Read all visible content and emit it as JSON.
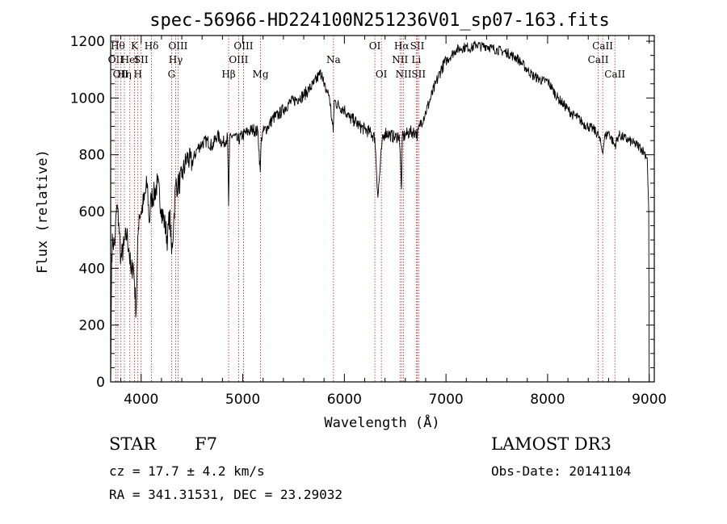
{
  "chart_data": {
    "type": "line",
    "title": "spec-56966-HD224100N251236V01_sp07-163.fits",
    "xlabel": "Wavelength (Å)",
    "ylabel": "Flux (relative)",
    "xlim": [
      3700,
      9050
    ],
    "ylim": [
      0,
      1220
    ],
    "xticks": [
      4000,
      5000,
      6000,
      7000,
      8000,
      9000
    ],
    "yticks": [
      0,
      200,
      400,
      600,
      800,
      1000,
      1200
    ],
    "grid": false,
    "series": [
      {
        "x": [
          3700,
          3705,
          3710,
          3720,
          3740,
          3760,
          3780,
          3800,
          3830,
          3860,
          3880,
          3900,
          3920,
          3935,
          3950,
          3960,
          3970,
          3980,
          4000,
          4030,
          4060,
          4080,
          4100,
          4130,
          4160,
          4200,
          4230,
          4260,
          4280,
          4300,
          4320,
          4340,
          4360,
          4400,
          4450,
          4500,
          4550,
          4600,
          4650,
          4700,
          4750,
          4800,
          4850,
          4861,
          4870,
          4900,
          4950,
          5000,
          5050,
          5100,
          5150,
          5172,
          5183,
          5200,
          5250,
          5300,
          5350,
          5400,
          5450,
          5500,
          5550,
          5600,
          5650,
          5700,
          5750,
          5780,
          5800,
          5820,
          5850,
          5890,
          5900,
          5950,
          6000,
          6050,
          6100,
          6150,
          6200,
          6250,
          6300,
          6330,
          6370,
          6400,
          6450,
          6500,
          6540,
          6563,
          6570,
          6600,
          6650,
          6700,
          6720,
          6740,
          6800,
          6850,
          6900,
          6950,
          7000,
          7050,
          7100,
          7150,
          7200,
          7250,
          7300,
          7350,
          7400,
          7450,
          7500,
          7550,
          7600,
          7650,
          7700,
          7750,
          7800,
          7850,
          7900,
          7950,
          8000,
          8050,
          8100,
          8150,
          8200,
          8250,
          8300,
          8350,
          8400,
          8450,
          8500,
          8542,
          8560,
          8600,
          8662,
          8700,
          8750,
          8800,
          8850,
          8900,
          8950,
          8980,
          8995,
          9000
        ],
        "y": [
          0,
          200,
          450,
          500,
          480,
          620,
          560,
          430,
          480,
          520,
          470,
          380,
          420,
          350,
          240,
          380,
          520,
          590,
          600,
          640,
          700,
          560,
          650,
          660,
          700,
          610,
          560,
          500,
          600,
          450,
          560,
          700,
          690,
          720,
          790,
          770,
          820,
          840,
          850,
          830,
          870,
          840,
          860,
          620,
          850,
          870,
          850,
          870,
          880,
          890,
          880,
          740,
          860,
          880,
          900,
          930,
          940,
          960,
          980,
          990,
          1000,
          1010,
          1030,
          1050,
          1080,
          1090,
          1040,
          1030,
          1010,
          880,
          990,
          970,
          960,
          930,
          920,
          900,
          890,
          880,
          860,
          650,
          840,
          880,
          870,
          860,
          870,
          680,
          860,
          870,
          880,
          880,
          870,
          900,
          950,
          1000,
          1050,
          1100,
          1130,
          1150,
          1170,
          1175,
          1180,
          1175,
          1190,
          1180,
          1185,
          1175,
          1170,
          1165,
          1160,
          1150,
          1140,
          1120,
          1100,
          1080,
          1070,
          1060,
          1060,
          1030,
          1000,
          980,
          960,
          940,
          930,
          910,
          900,
          890,
          870,
          810,
          860,
          880,
          830,
          870,
          860,
          850,
          840,
          830,
          810,
          790,
          600,
          0
        ]
      }
    ],
    "line_markers": [
      {
        "w": 3750,
        "label": "OII",
        "row": 2
      },
      {
        "w": 3771,
        "label": "Hθ",
        "row": 1
      },
      {
        "w": 3798,
        "label": "OII",
        "row": 3
      },
      {
        "w": 3835,
        "label": "Hη",
        "row": 3
      },
      {
        "w": 3889,
        "label": "HeI",
        "row": 2
      },
      {
        "w": 3934,
        "label": "K",
        "row": 1
      },
      {
        "w": 3968,
        "label": "H",
        "row": 3
      },
      {
        "w": 4000,
        "label": "SII",
        "row": 2
      },
      {
        "w": 4102,
        "label": "Hδ",
        "row": 1
      },
      {
        "w": 4300,
        "label": "G",
        "row": 3
      },
      {
        "w": 4340,
        "label": "Hγ",
        "row": 2
      },
      {
        "w": 4363,
        "label": "OIII",
        "row": 1
      },
      {
        "w": 4861,
        "label": "Hβ",
        "row": 3
      },
      {
        "w": 4959,
        "label": "OIII",
        "row": 2
      },
      {
        "w": 5007,
        "label": "OIII",
        "row": 1
      },
      {
        "w": 5175,
        "label": "Mg",
        "row": 3
      },
      {
        "w": 5893,
        "label": "Na",
        "row": 2
      },
      {
        "w": 6300,
        "label": "OI",
        "row": 1
      },
      {
        "w": 6364,
        "label": "OI",
        "row": 3
      },
      {
        "w": 6548,
        "label": "NII",
        "row": 2
      },
      {
        "w": 6563,
        "label": "Hα",
        "row": 1
      },
      {
        "w": 6583,
        "label": "NII",
        "row": 3
      },
      {
        "w": 6707,
        "label": "Li",
        "row": 2
      },
      {
        "w": 6717,
        "label": "SII",
        "row": 1
      },
      {
        "w": 6731,
        "label": "SII",
        "row": 3
      },
      {
        "w": 8498,
        "label": "CaII",
        "row": 2
      },
      {
        "w": 8542,
        "label": "CaII",
        "row": 1
      },
      {
        "w": 8662,
        "label": "CaII",
        "row": 3
      }
    ]
  },
  "info": {
    "class": "STAR",
    "subclass": "F7",
    "cz": "cz = 17.7 ± 4.2 km/s",
    "radec": "RA = 341.31531, DEC =  23.29032",
    "survey": "LAMOST DR3",
    "obsdate": "Obs-Date: 20141104"
  },
  "colors": {
    "spectrum": "#000000",
    "line_marker": "#b22222"
  }
}
